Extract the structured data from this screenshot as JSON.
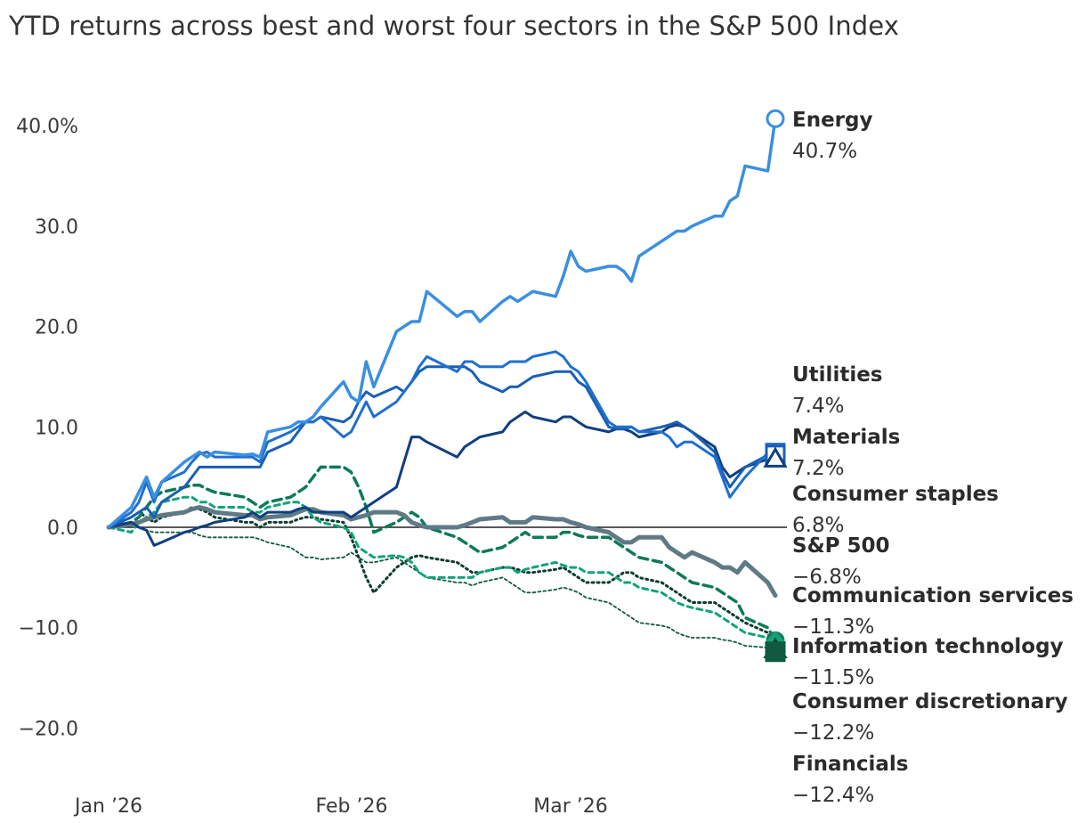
{
  "chart_data": {
    "type": "line",
    "title": "YTD returns across best and worst four sectors in the S&P 500 Index",
    "xlabel": "",
    "ylabel": "",
    "x_ticks": [
      "Jan ’26",
      "Feb ’26",
      "Mar ’26"
    ],
    "y_ticks": [
      "40.0%",
      "30.0",
      "20.0",
      "10.0",
      "0.0",
      "−10.0",
      "−20.0"
    ],
    "y_tick_values": [
      40,
      30,
      20,
      10,
      0,
      -10,
      -20
    ],
    "ylim": [
      -22,
      42
    ],
    "x": [
      "2026-01-02",
      "2026-01-05",
      "2026-01-06",
      "2026-01-07",
      "2026-01-08",
      "2026-01-09",
      "2026-01-12",
      "2026-01-13",
      "2026-01-14",
      "2026-01-15",
      "2026-01-16",
      "2026-01-20",
      "2026-01-21",
      "2026-01-22",
      "2026-01-23",
      "2026-01-26",
      "2026-01-27",
      "2026-01-28",
      "2026-01-29",
      "2026-01-30",
      "2026-02-02",
      "2026-02-03",
      "2026-02-04",
      "2026-02-05",
      "2026-02-06",
      "2026-02-09",
      "2026-02-10",
      "2026-02-11",
      "2026-02-12",
      "2026-02-13",
      "2026-02-17",
      "2026-02-18",
      "2026-02-19",
      "2026-02-20",
      "2026-02-23",
      "2026-02-24",
      "2026-02-25",
      "2026-02-26",
      "2026-02-27",
      "2026-03-02",
      "2026-03-03",
      "2026-03-04",
      "2026-03-05",
      "2026-03-06",
      "2026-03-09",
      "2026-03-10",
      "2026-03-11",
      "2026-03-12",
      "2026-03-13",
      "2026-03-16",
      "2026-03-17",
      "2026-03-18",
      "2026-03-19",
      "2026-03-20",
      "2026-03-23",
      "2026-03-24",
      "2026-03-25",
      "2026-03-26",
      "2026-03-27",
      "2026-03-30",
      "2026-03-31"
    ],
    "grid": false,
    "legend": "end-labels-right",
    "series": [
      {
        "name": "Energy",
        "end_label": "40.7%",
        "color": "#3a8fe0",
        "dash": "",
        "width": 3.5,
        "marker": "circle-open",
        "values": [
          0,
          2,
          3.5,
          5,
          3,
          4.5,
          6.5,
          7,
          7.5,
          7,
          7.5,
          7.2,
          7.3,
          7,
          9.5,
          10,
          10.5,
          10.5,
          11,
          12,
          14.5,
          13,
          12.5,
          16.5,
          14,
          19.5,
          20,
          20.5,
          20.5,
          23.5,
          21,
          21.5,
          21.5,
          20.5,
          22.5,
          23,
          22.5,
          23,
          23.5,
          23,
          25,
          27.5,
          26,
          25.5,
          26,
          26,
          25.5,
          24.5,
          27,
          28.5,
          29,
          29.5,
          29.5,
          30,
          31,
          31,
          32.5,
          33,
          36,
          35.5,
          40.7
        ]
      },
      {
        "name": "Utilities",
        "end_label": "7.4%",
        "color": "#1f6fd1",
        "dash": "",
        "width": 3,
        "marker": "square-open",
        "values": [
          0,
          1.5,
          2.5,
          4.5,
          2.5,
          4.5,
          5.5,
          6.5,
          7.3,
          7.5,
          7,
          7,
          7,
          6.5,
          8.5,
          9.5,
          10,
          10.5,
          10.5,
          11,
          9,
          9.5,
          11,
          12.5,
          11,
          12.5,
          13.5,
          14.5,
          16,
          17,
          15.5,
          16.5,
          16.5,
          16,
          16,
          16.5,
          16.5,
          16.5,
          17,
          17.5,
          17,
          16,
          15.5,
          14.5,
          10.5,
          10,
          10,
          10,
          9.5,
          9.5,
          9,
          8,
          8.5,
          8.5,
          7,
          5,
          3,
          4,
          5,
          7.4,
          7.4
        ]
      },
      {
        "name": "Materials",
        "end_label": "7.2%",
        "color": "#1a5fb4",
        "dash": "",
        "width": 3,
        "marker": "square-open",
        "values": [
          0,
          1,
          1.5,
          2,
          1,
          2.5,
          4,
          5,
          6,
          6,
          6,
          6,
          6,
          6,
          7.5,
          8.5,
          9.5,
          10.5,
          10.5,
          11,
          10.5,
          11,
          12.5,
          13.5,
          13,
          14,
          13.5,
          14.5,
          15.5,
          16,
          16,
          16,
          15.5,
          14.5,
          13.5,
          14,
          14,
          14.5,
          15,
          15.5,
          15.5,
          15.5,
          14.5,
          14,
          10,
          9.8,
          9.8,
          10,
          9.5,
          10,
          10.2,
          10.5,
          10,
          9.5,
          7.5,
          5.5,
          4,
          5,
          6,
          7.2,
          7.2
        ]
      },
      {
        "name": "Consumer staples",
        "end_label": "6.8%",
        "color": "#0f3f7f",
        "dash": "",
        "width": 3,
        "marker": "triangle-open",
        "values": [
          0,
          0.5,
          0,
          -0.3,
          -1.8,
          -1.5,
          -0.5,
          -0.3,
          0,
          0.2,
          0.5,
          1,
          1.5,
          1,
          1.5,
          1.5,
          1.8,
          2,
          1.5,
          1.5,
          1.5,
          1,
          1.5,
          2,
          2.5,
          4,
          6.5,
          9,
          9,
          8.5,
          7,
          8,
          8.5,
          9,
          9.5,
          10.5,
          11,
          11.5,
          11,
          10.5,
          11,
          11,
          10.5,
          10,
          9.5,
          9.8,
          9.8,
          9.5,
          9,
          9.5,
          10,
          10.2,
          10,
          9.5,
          8,
          6,
          5,
          5.5,
          6,
          6.8,
          6.8
        ]
      },
      {
        "name": "S&P 500",
        "end_label": "−6.8%",
        "color": "#5f7a86",
        "dash": "",
        "width": 5,
        "marker": "none",
        "values": [
          0,
          0.3,
          0.5,
          0.8,
          1,
          1.2,
          1.5,
          1.8,
          2,
          1.8,
          1.5,
          1.2,
          1.2,
          0.8,
          1,
          1.2,
          1.5,
          1.8,
          1.8,
          1.5,
          1.2,
          0.8,
          1,
          1.2,
          1.5,
          1.5,
          1.2,
          0.5,
          0.2,
          0,
          0,
          0.2,
          0.5,
          0.8,
          1,
          0.5,
          0.5,
          0.5,
          1,
          0.8,
          0.8,
          0.5,
          0.3,
          0,
          -0.5,
          -1,
          -1.5,
          -1.5,
          -1,
          -1,
          -2,
          -2.5,
          -3,
          -2.5,
          -3.5,
          -4,
          -4,
          -4.5,
          -3.5,
          -5.5,
          -6.8
        ]
      },
      {
        "name": "Communication services",
        "end_label": "−11.3%",
        "color": "#0d7a5a",
        "dash": "10,6",
        "width": 3.5,
        "marker": "circle-filled",
        "values": [
          0,
          0.5,
          1,
          2,
          3,
          3.5,
          4,
          4.2,
          4.2,
          3.8,
          3.5,
          3,
          2.5,
          2,
          2.5,
          3,
          3.5,
          4,
          5,
          6,
          6,
          5.5,
          4,
          2,
          -0.5,
          0.5,
          1,
          1.5,
          1,
          0,
          -1,
          -1.5,
          -2,
          -2.5,
          -2,
          -1.5,
          -1,
          -0.5,
          -1,
          -1,
          -0.5,
          -0.5,
          -0.8,
          -1,
          -1,
          -1.5,
          -2,
          -2.5,
          -3,
          -3.5,
          -4,
          -4.5,
          -5,
          -5.5,
          -6,
          -6.5,
          -7,
          -7.5,
          -9,
          -10,
          -11.3
        ]
      },
      {
        "name": "Information technology",
        "end_label": "−11.5%",
        "color": "#12a37a",
        "dash": "6,5",
        "width": 3,
        "marker": "diamond-filled",
        "values": [
          0,
          -0.5,
          0.5,
          1,
          1.5,
          2.5,
          3,
          3,
          2.5,
          2.5,
          2,
          2,
          1.5,
          1.5,
          2,
          2.5,
          2.5,
          2,
          1,
          0.5,
          0,
          -0.5,
          -2,
          -2.5,
          -3,
          -2.8,
          -3,
          -3.5,
          -4.5,
          -5,
          -5,
          -5,
          -5,
          -4.5,
          -4,
          -4,
          -4.5,
          -4.2,
          -4,
          -3.5,
          -3.8,
          -4,
          -4,
          -4.5,
          -4.5,
          -5,
          -5.5,
          -5.5,
          -6,
          -6.5,
          -7,
          -7.5,
          -7.8,
          -8,
          -8.5,
          -9,
          -9.5,
          -10,
          -10.5,
          -11,
          -11.5
        ]
      },
      {
        "name": "Consumer discretionary",
        "end_label": "−12.2%",
        "color": "#0b3d2c",
        "dash": "2,4",
        "width": 3,
        "marker": "triangle-filled",
        "values": [
          0,
          1,
          1.5,
          1,
          0.5,
          1,
          1.5,
          2,
          1.8,
          1.5,
          1,
          0.5,
          0.5,
          0,
          0.5,
          0.5,
          0.8,
          1,
          1,
          0.8,
          0.5,
          -1,
          -3,
          -5,
          -6.5,
          -4,
          -3.5,
          -3,
          -2.8,
          -3,
          -3.5,
          -4,
          -4.5,
          -4.5,
          -4,
          -4,
          -4.2,
          -4.5,
          -4.5,
          -4.2,
          -4,
          -4.5,
          -5,
          -5.5,
          -5.5,
          -5,
          -4.5,
          -4.5,
          -5,
          -5.5,
          -6,
          -6.5,
          -7,
          -7.5,
          -7.5,
          -8,
          -8.5,
          -9,
          -9.5,
          -10.5,
          -12.2
        ]
      },
      {
        "name": "Financials",
        "end_label": "−12.4%",
        "color": "#0f5a40",
        "dash": "3,3",
        "width": 1.8,
        "marker": "square-filled",
        "values": [
          0,
          0.2,
          0,
          -0.3,
          -0.5,
          -0.5,
          -0.5,
          -0.5,
          -0.8,
          -1,
          -1,
          -1,
          -1,
          -1.2,
          -1.5,
          -2,
          -2.5,
          -3,
          -3,
          -3.2,
          -3,
          -2.5,
          -3,
          -3.5,
          -3.5,
          -3,
          -3.5,
          -4,
          -4.5,
          -5,
          -5.5,
          -5.5,
          -5.8,
          -5.5,
          -5,
          -5.5,
          -6,
          -6.5,
          -6.5,
          -6.2,
          -6,
          -6.2,
          -6.5,
          -7,
          -7.5,
          -8,
          -8.5,
          -9,
          -9.5,
          -9.8,
          -10,
          -10.5,
          -10.8,
          -11,
          -11,
          -11.2,
          -11.3,
          -11.5,
          -11.8,
          -12,
          -12.4
        ]
      }
    ]
  }
}
